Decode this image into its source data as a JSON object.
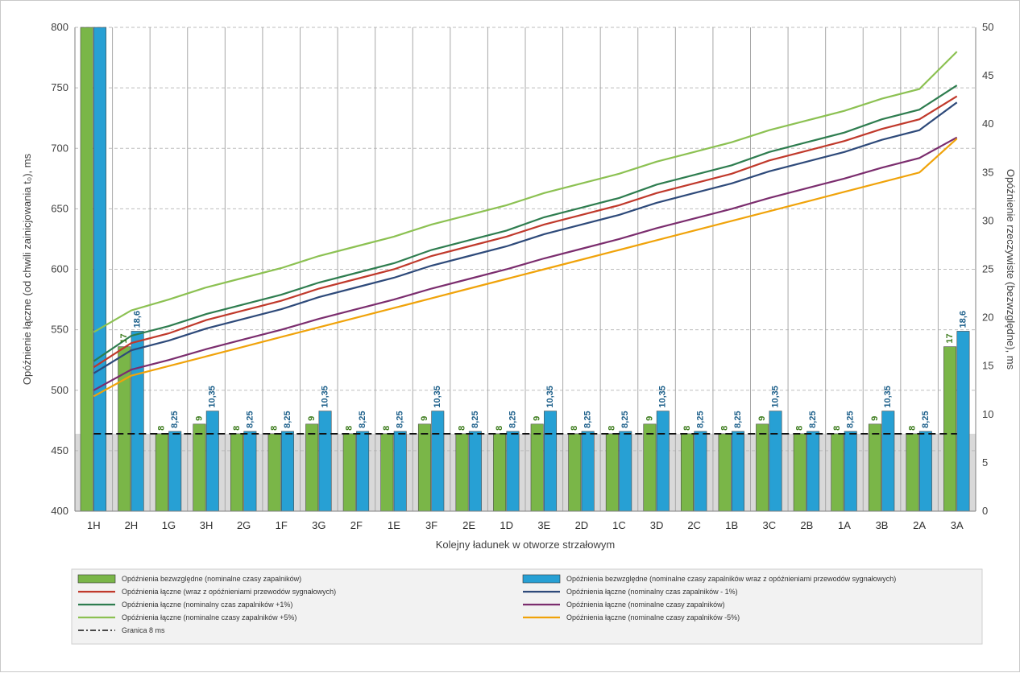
{
  "chart_data": {
    "type": "bar",
    "ylabel": "Opóźnienie łączne  (od chwili zainicjowania t₀), ms",
    "y2label": "Opóźnienie rzeczywiste (bezwzględne), ms",
    "xlabel": "Kolejny ładunek w otworze strzałowym",
    "ylim": [
      400,
      800
    ],
    "y2lim": [
      0,
      50
    ],
    "yticks": [
      400,
      450,
      500,
      550,
      600,
      650,
      700,
      750,
      800
    ],
    "y2ticks": [
      0,
      5,
      10,
      15,
      20,
      25,
      30,
      35,
      40,
      45,
      50
    ],
    "grid": true,
    "legend_position": "bottom",
    "categories": [
      "1H",
      "2H",
      "1G",
      "3H",
      "2G",
      "1F",
      "3G",
      "2F",
      "1E",
      "3F",
      "2E",
      "1D",
      "3E",
      "2D",
      "1C",
      "3D",
      "2C",
      "1B",
      "3C",
      "2B",
      "1A",
      "3B",
      "2A",
      "3A"
    ],
    "bar_series": [
      {
        "name": "Opóźnienia bezwzględne (nominalne czasy zapalników)",
        "axis": "right",
        "color": "#7ab648",
        "values": [
          null,
          17,
          8,
          9,
          8,
          8,
          9,
          8,
          8,
          9,
          8,
          8,
          9,
          8,
          8,
          9,
          8,
          8,
          9,
          8,
          8,
          9,
          8,
          17
        ],
        "labels": [
          "",
          "17",
          "8",
          "9",
          "8",
          "8",
          "9",
          "8",
          "8",
          "9",
          "8",
          "8",
          "9",
          "8",
          "8",
          "9",
          "8",
          "8",
          "9",
          "8",
          "8",
          "9",
          "8",
          "17"
        ],
        "clipped_top": [
          true,
          false,
          false,
          false,
          false,
          false,
          false,
          false,
          false,
          false,
          false,
          false,
          false,
          false,
          false,
          false,
          false,
          false,
          false,
          false,
          false,
          false,
          false,
          false
        ]
      },
      {
        "name": "Opóźnienia bezwzględne (nominalne czasy zapalników wraz z opóźnieniami przewodów sygnałowych)",
        "axis": "right",
        "color": "#27a0d4",
        "values": [
          null,
          18.6,
          8.25,
          10.35,
          8.25,
          8.25,
          10.35,
          8.25,
          8.25,
          10.35,
          8.25,
          8.25,
          10.35,
          8.25,
          8.25,
          10.35,
          8.25,
          8.25,
          10.35,
          8.25,
          8.25,
          10.35,
          8.25,
          18.6
        ],
        "labels": [
          "",
          "18,6",
          "8,25",
          "10,35",
          "8,25",
          "8,25",
          "10,35",
          "8,25",
          "8,25",
          "10,35",
          "8,25",
          "8,25",
          "10,35",
          "8,25",
          "8,25",
          "10,35",
          "8,25",
          "8,25",
          "10,35",
          "8,25",
          "8,25",
          "10,35",
          "8,25",
          "18,6"
        ],
        "clipped_top": [
          true,
          false,
          false,
          false,
          false,
          false,
          false,
          false,
          false,
          false,
          false,
          false,
          false,
          false,
          false,
          false,
          false,
          false,
          false,
          false,
          false,
          false,
          false,
          false
        ]
      }
    ],
    "line_series": [
      {
        "name": "Opóźnienia łączne  (wraz z opóźnieniami przewodów sygnałowych)",
        "color": "#c0392b",
        "values": [
          519,
          539,
          547,
          558,
          566,
          574,
          584,
          592,
          600,
          611,
          619,
          627,
          637,
          645,
          653,
          663,
          671,
          679,
          690,
          698,
          706,
          716,
          724,
          743
        ]
      },
      {
        "name": "Opóźnienia łączne  (nominalny czas zapalników - 1%)",
        "color": "#2e4a7a",
        "values": [
          514,
          533,
          541,
          551,
          559,
          567,
          577,
          585,
          593,
          603,
          611,
          619,
          629,
          637,
          645,
          655,
          663,
          671,
          681,
          689,
          697,
          707,
          715,
          738
        ]
      },
      {
        "name": "Opóźnienia łączne  (nominalny czas zapalników +1%)",
        "color": "#2e7d4f",
        "values": [
          524,
          545,
          553,
          563,
          571,
          579,
          589,
          597,
          605,
          616,
          624,
          632,
          643,
          651,
          659,
          670,
          678,
          686,
          697,
          705,
          713,
          724,
          732,
          752
        ]
      },
      {
        "name": "Opóźnienia łączne  (nominalne czasy zapalników)",
        "color": "#7b2d6e",
        "values": [
          500,
          517,
          525,
          534,
          542,
          550,
          559,
          567,
          575,
          584,
          592,
          600,
          609,
          617,
          625,
          634,
          642,
          650,
          659,
          667,
          675,
          684,
          692,
          709
        ]
      },
      {
        "name": "Opóźnienia łączne  (nominalne czasy zapalników +5%)",
        "color": "#8cc152",
        "values": [
          548,
          566,
          575,
          585,
          593,
          601,
          611,
          619,
          627,
          637,
          645,
          653,
          663,
          671,
          679,
          689,
          697,
          705,
          715,
          723,
          731,
          741,
          749,
          780
        ]
      },
      {
        "name": "Opóźnienia łączne  (nominalne czasy zapalników -5%)",
        "color": "#f0a30a",
        "values": [
          495,
          512,
          520,
          528,
          536,
          544,
          552,
          560,
          568,
          576,
          584,
          592,
          600,
          608,
          616,
          624,
          632,
          640,
          648,
          656,
          664,
          672,
          680,
          708
        ]
      },
      {
        "name": "Granica 8 ms",
        "color": "#111111",
        "dashed": true,
        "axis": "right",
        "constant": 8
      }
    ]
  },
  "legend": {
    "items": [
      {
        "label": "Opóźnienia bezwzględne (nominalne czasy zapalników)",
        "kind": "bar",
        "color": "#7ab648"
      },
      {
        "label": "Opóźnienia bezwzględne (nominalne czasy zapalników wraz z opóźnieniami przewodów sygnałowych)",
        "kind": "bar",
        "color": "#27a0d4"
      },
      {
        "label": "Opóźnienia łączne  (wraz z opóźnieniami przewodów sygnałowych)",
        "kind": "line",
        "color": "#c0392b"
      },
      {
        "label": "Opóźnienia łączne  (nominalny czas zapalników - 1%)",
        "kind": "line",
        "color": "#2e4a7a"
      },
      {
        "label": "Opóźnienia łączne  (nominalny czas zapalników +1%)",
        "kind": "line",
        "color": "#2e7d4f"
      },
      {
        "label": "Opóźnienia łączne  (nominalne czasy zapalników)",
        "kind": "line",
        "color": "#7b2d6e"
      },
      {
        "label": "Opóźnienia łączne  (nominalne czasy zapalników +5%)",
        "kind": "line",
        "color": "#8cc152"
      },
      {
        "label": "Opóźnienia łączne  (nominalne czasy zapalników -5%)",
        "kind": "line",
        "color": "#f0a30a"
      },
      {
        "label": "Granica 8 ms",
        "kind": "dash",
        "color": "#111111"
      }
    ]
  }
}
